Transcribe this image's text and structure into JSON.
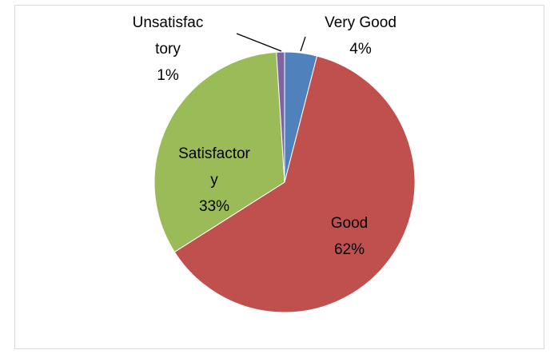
{
  "chart_data": {
    "type": "pie",
    "title": "",
    "slices": [
      {
        "label_lines": [
          "Very Good"
        ],
        "value": 4,
        "value_label": "4%",
        "color": "#4F81BD"
      },
      {
        "label_lines": [
          "Good"
        ],
        "value": 62,
        "value_label": "62%",
        "color": "#C0504D"
      },
      {
        "label_lines": [
          "Satisfactor",
          "y"
        ],
        "value": 33,
        "value_label": "33%",
        "color": "#9BBB59"
      },
      {
        "label_lines": [
          "Unsatisfac",
          "tory"
        ],
        "value": 1,
        "value_label": "1%",
        "color": "#8064A2"
      }
    ],
    "legend": "none",
    "start_angle_deg": 0,
    "direction": "clockwise",
    "label_placement": "inside-and-outside-with-leaders"
  }
}
